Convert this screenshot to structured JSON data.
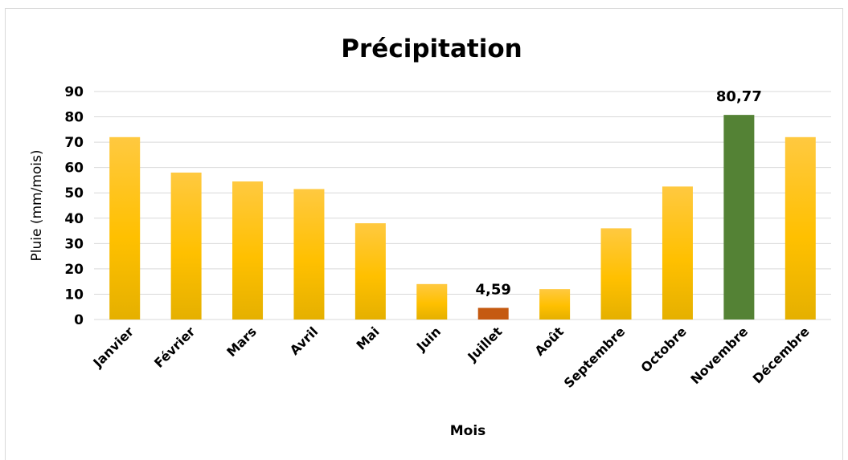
{
  "chart_data": {
    "type": "bar",
    "title": "Précipitation",
    "xlabel": "Mois",
    "ylabel": "Pluie (mm/mois)",
    "ylim": [
      0,
      90
    ],
    "ytick_step": 10,
    "yticks": [
      "0",
      "10",
      "20",
      "30",
      "40",
      "50",
      "60",
      "70",
      "80",
      "90"
    ],
    "grid": true,
    "legend": "none",
    "categories": [
      "Janvier",
      "Février",
      "Mars",
      "Avril",
      "Mai",
      "Juin",
      "Juillet",
      "Août",
      "Septembre",
      "Octobre",
      "Novembre",
      "Décembre"
    ],
    "values": [
      72,
      58,
      54.5,
      51.5,
      38,
      14,
      4.59,
      12,
      36,
      52.5,
      80.77,
      72
    ],
    "data_labels": [
      {
        "category": "Juillet",
        "text": "4,59"
      },
      {
        "category": "Novembre",
        "text": "80,77"
      }
    ],
    "colors": {
      "default_top": "#FFC940",
      "default_mid": "#FFC000",
      "default_bottom": "#E5B000",
      "min": "#C55A11",
      "max": "#548235",
      "grid": "#d9d9d9",
      "text": "#000000"
    },
    "highlight": {
      "Juillet": "min",
      "Novembre": "max"
    }
  }
}
